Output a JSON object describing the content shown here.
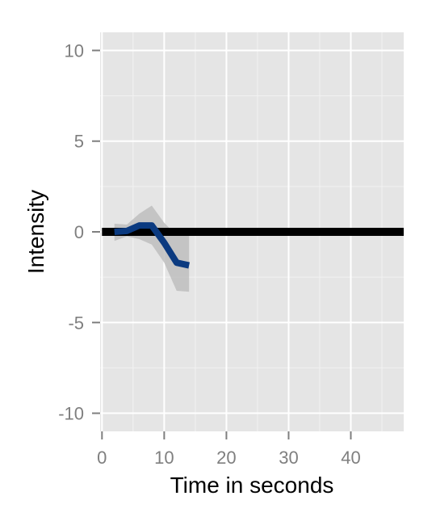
{
  "chart_data": {
    "type": "line",
    "title": "",
    "xlabel": "Time in seconds",
    "ylabel": "Intensity",
    "xlim": [
      -0.3,
      48.5
    ],
    "ylim": [
      -11,
      11
    ],
    "x_ticks": [
      0,
      10,
      20,
      30,
      40
    ],
    "y_ticks": [
      10,
      5,
      0,
      -5,
      -10
    ],
    "grid": true,
    "legend": "none",
    "colors": {
      "panel": "#e5e5e5",
      "grid_major": "#ffffff",
      "grid_minor": "#f2f2f2",
      "band": "#bebebe",
      "mean_line": "#0b3a80",
      "baseline": "#000000",
      "tick_text": "#7f7f7f",
      "tick_mark": "#7f7f7f"
    },
    "series": [
      {
        "role": "baseline",
        "x": [
          0,
          48.5
        ],
        "y": [
          0,
          0
        ]
      },
      {
        "role": "mean",
        "x": [
          2,
          4,
          6,
          8,
          10,
          12,
          14
        ],
        "y": [
          0.0,
          0.05,
          0.35,
          0.35,
          -0.6,
          -1.7,
          -1.85
        ],
        "lower": [
          -0.5,
          -0.25,
          -0.4,
          -0.7,
          -1.7,
          -3.25,
          -3.3
        ],
        "upper": [
          0.45,
          0.4,
          1.0,
          1.45,
          0.5,
          -0.2,
          -0.1
        ]
      }
    ]
  }
}
